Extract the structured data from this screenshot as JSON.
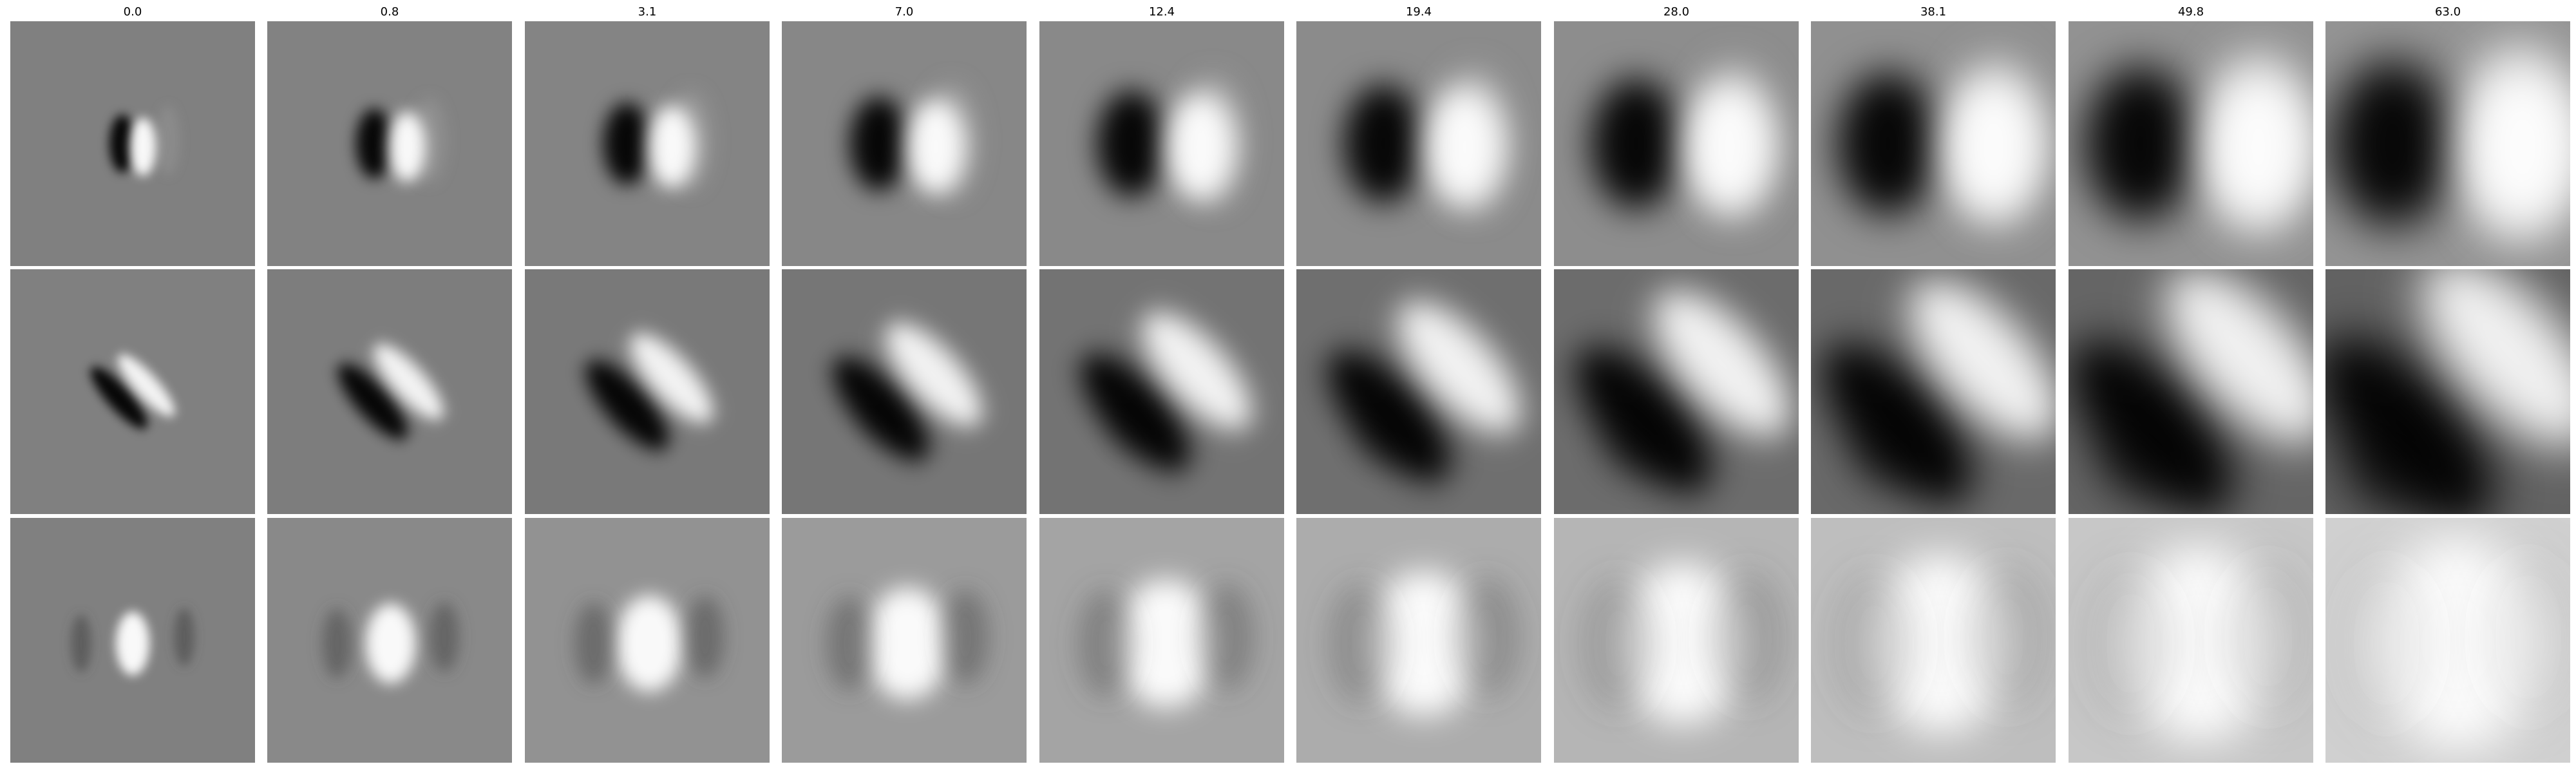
{
  "figure": {
    "column_titles": [
      "0.0",
      "0.8",
      "3.1",
      "7.0",
      "12.4",
      "19.4",
      "28.0",
      "38.1",
      "49.8",
      "63.0"
    ],
    "rows": 3,
    "colormap": "grayscale",
    "background": "#ffffff"
  }
}
